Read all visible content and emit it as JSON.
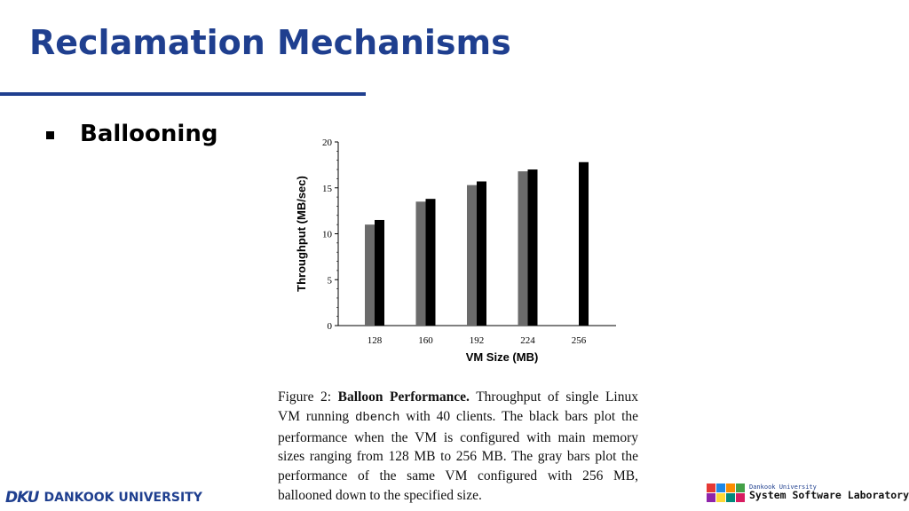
{
  "slide": {
    "title": "Reclamation Mechanisms",
    "bullet": "Ballooning"
  },
  "chart_data": {
    "type": "bar",
    "xlabel": "VM Size (MB)",
    "ylabel": "Throughput (MB/sec)",
    "ylim": [
      0,
      20
    ],
    "yticks": [
      "0",
      "5",
      "10",
      "15",
      "20"
    ],
    "categories": [
      "128",
      "160",
      "192",
      "224",
      "256"
    ],
    "series": [
      {
        "color": "#6b6b6b",
        "values": [
          11.0,
          13.5,
          15.3,
          16.8,
          null
        ]
      },
      {
        "color": "#000000",
        "values": [
          11.5,
          13.8,
          15.7,
          17.0,
          17.8
        ]
      }
    ],
    "grid": false,
    "legend": "none"
  },
  "caption": {
    "label": "Figure 2:",
    "heading": "Balloon Performance.",
    "text1": "Throughput of single Linux VM running",
    "code": "dbench",
    "text2": "with 40 clients. The black bars plot the performance when the VM is configured with main memory sizes ranging from 128 MB to 256 MB. The gray bars plot the performance of the same VM configured with 256 MB, ballooned down to the specified size."
  },
  "footer": {
    "left_logo": "DKU",
    "left_name": "DANKOOK UNIVERSITY",
    "right_univ": "Dankook University",
    "right_lab": "System Software Laboratory",
    "brand_color": "#1f3f8f"
  }
}
